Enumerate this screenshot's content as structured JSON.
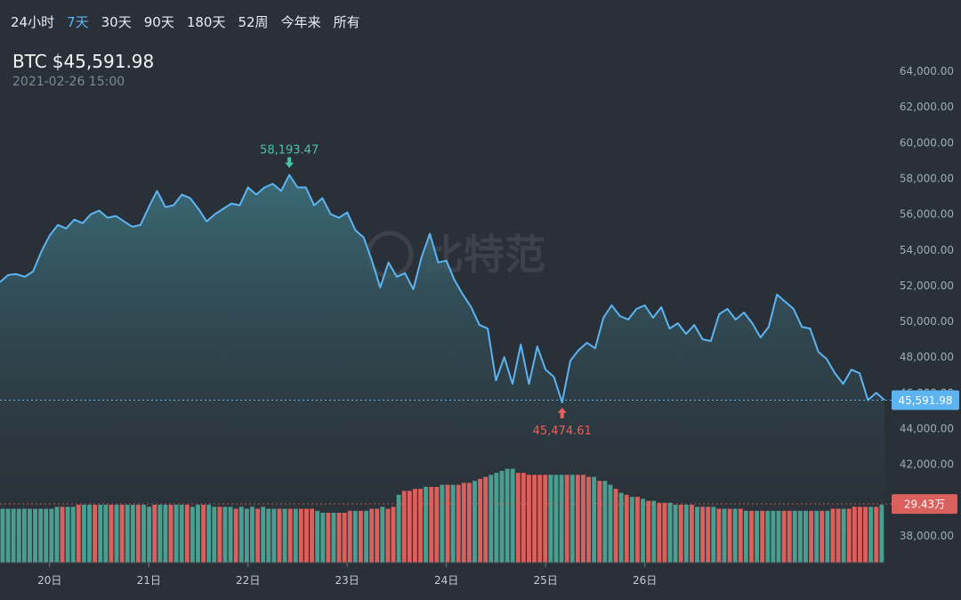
{
  "range_tabs": [
    {
      "label": "24小时",
      "active": false
    },
    {
      "label": "7天",
      "active": true
    },
    {
      "label": "30天",
      "active": false
    },
    {
      "label": "90天",
      "active": false
    },
    {
      "label": "180天",
      "active": false
    },
    {
      "label": "52周",
      "active": false
    },
    {
      "label": "今年来",
      "active": false
    },
    {
      "label": "所有",
      "active": false
    }
  ],
  "header": {
    "symbol": "BTC",
    "price": "$45,591.98",
    "timestamp": "2021-02-26 15:00"
  },
  "watermark": "比特范",
  "colors": {
    "line": "#5cb4f2",
    "up": "#4a9e90",
    "down": "#d9605c",
    "max_marker": "#4cc3a0",
    "min_marker": "#e8615c",
    "background": "#2a3037"
  },
  "chart_data": {
    "type": "line",
    "x_range": [
      "2021-02-19 12:00",
      "2021-02-26 15:00"
    ],
    "xticks": [
      {
        "label": "20日",
        "t": "2021-02-20 00:00"
      },
      {
        "label": "21日",
        "t": "2021-02-21 00:00"
      },
      {
        "label": "22日",
        "t": "2021-02-22 00:00"
      },
      {
        "label": "23日",
        "t": "2021-02-23 00:00"
      },
      {
        "label": "24日",
        "t": "2021-02-24 00:00"
      },
      {
        "label": "25日",
        "t": "2021-02-25 00:00"
      },
      {
        "label": "26日",
        "t": "2021-02-26 00:00"
      }
    ],
    "ylim": [
      36500,
      65000
    ],
    "yticks": [
      {
        "label": "38,000.00",
        "v": 38000
      },
      {
        "label": "40,000.00",
        "v": 40000
      },
      {
        "label": "42,000.00",
        "v": 42000
      },
      {
        "label": "44,000.00",
        "v": 44000
      },
      {
        "label": "46,000.00",
        "v": 46000
      },
      {
        "label": "48,000.00",
        "v": 48000
      },
      {
        "label": "50,000.00",
        "v": 50000
      },
      {
        "label": "52,000.00",
        "v": 52000
      },
      {
        "label": "54,000.00",
        "v": 54000
      },
      {
        "label": "56,000.00",
        "v": 56000
      },
      {
        "label": "58,000.00",
        "v": 58000
      },
      {
        "label": "60,000.00",
        "v": 60000
      },
      {
        "label": "62,000.00",
        "v": 62000
      },
      {
        "label": "64,000.00",
        "v": 64000
      }
    ],
    "price_series": {
      "points": [
        [
          "2021-02-19 12:00",
          52200
        ],
        [
          "2021-02-19 14:00",
          52600
        ],
        [
          "2021-02-19 16:00",
          52650
        ],
        [
          "2021-02-19 18:00",
          52500
        ],
        [
          "2021-02-19 20:00",
          52800
        ],
        [
          "2021-02-19 22:00",
          53900
        ],
        [
          "2021-02-20 00:00",
          54800
        ],
        [
          "2021-02-20 02:00",
          55400
        ],
        [
          "2021-02-20 04:00",
          55200
        ],
        [
          "2021-02-20 06:00",
          55700
        ],
        [
          "2021-02-20 08:00",
          55500
        ],
        [
          "2021-02-20 10:00",
          56000
        ],
        [
          "2021-02-20 12:00",
          56200
        ],
        [
          "2021-02-20 14:00",
          55800
        ],
        [
          "2021-02-20 16:00",
          55900
        ],
        [
          "2021-02-20 18:00",
          55600
        ],
        [
          "2021-02-20 20:00",
          55300
        ],
        [
          "2021-02-20 22:00",
          55400
        ],
        [
          "2021-02-21 00:00",
          56400
        ],
        [
          "2021-02-21 02:00",
          57300
        ],
        [
          "2021-02-21 04:00",
          56400
        ],
        [
          "2021-02-21 06:00",
          56500
        ],
        [
          "2021-02-21 08:00",
          57100
        ],
        [
          "2021-02-21 10:00",
          56900
        ],
        [
          "2021-02-21 12:00",
          56300
        ],
        [
          "2021-02-21 14:00",
          55600
        ],
        [
          "2021-02-21 16:00",
          56000
        ],
        [
          "2021-02-21 18:00",
          56300
        ],
        [
          "2021-02-21 20:00",
          56600
        ],
        [
          "2021-02-21 22:00",
          56500
        ],
        [
          "2021-02-22 00:00",
          57500
        ],
        [
          "2021-02-22 02:00",
          57100
        ],
        [
          "2021-02-22 04:00",
          57500
        ],
        [
          "2021-02-22 06:00",
          57700
        ],
        [
          "2021-02-22 08:00",
          57300
        ],
        [
          "2021-02-22 10:00",
          58193.47
        ],
        [
          "2021-02-22 12:00",
          57500
        ],
        [
          "2021-02-22 14:00",
          57500
        ],
        [
          "2021-02-22 16:00",
          56500
        ],
        [
          "2021-02-22 18:00",
          56900
        ],
        [
          "2021-02-22 20:00",
          56000
        ],
        [
          "2021-02-22 22:00",
          55800
        ],
        [
          "2021-02-23 00:00",
          56100
        ],
        [
          "2021-02-23 02:00",
          55100
        ],
        [
          "2021-02-23 04:00",
          54700
        ],
        [
          "2021-02-23 06:00",
          53400
        ],
        [
          "2021-02-23 08:00",
          51900
        ],
        [
          "2021-02-23 10:00",
          53300
        ],
        [
          "2021-02-23 12:00",
          52500
        ],
        [
          "2021-02-23 14:00",
          52700
        ],
        [
          "2021-02-23 16:00",
          51800
        ],
        [
          "2021-02-23 18:00",
          53600
        ],
        [
          "2021-02-23 20:00",
          54900
        ],
        [
          "2021-02-23 22:00",
          53300
        ],
        [
          "2021-02-24 00:00",
          53400
        ],
        [
          "2021-02-24 02:00",
          52300
        ],
        [
          "2021-02-24 04:00",
          51500
        ],
        [
          "2021-02-24 06:00",
          50800
        ],
        [
          "2021-02-24 08:00",
          49800
        ],
        [
          "2021-02-24 10:00",
          49600
        ],
        [
          "2021-02-24 12:00",
          46700
        ],
        [
          "2021-02-24 14:00",
          48000
        ],
        [
          "2021-02-24 16:00",
          46500
        ],
        [
          "2021-02-24 18:00",
          48700
        ],
        [
          "2021-02-24 20:00",
          46500
        ],
        [
          "2021-02-24 22:00",
          48600
        ],
        [
          "2021-02-25 00:00",
          47300
        ],
        [
          "2021-02-25 02:00",
          46900
        ],
        [
          "2021-02-25 04:00",
          45474.61
        ],
        [
          "2021-02-25 06:00",
          47800
        ],
        [
          "2021-02-25 08:00",
          48400
        ],
        [
          "2021-02-25 10:00",
          48800
        ],
        [
          "2021-02-25 12:00",
          48500
        ],
        [
          "2021-02-25 14:00",
          50200
        ],
        [
          "2021-02-25 16:00",
          50900
        ],
        [
          "2021-02-25 18:00",
          50300
        ],
        [
          "2021-02-25 20:00",
          50100
        ],
        [
          "2021-02-25 22:00",
          50700
        ],
        [
          "2021-02-26 00:00",
          50900
        ],
        [
          "2021-02-26 02:00",
          50200
        ],
        [
          "2021-02-26 04:00",
          50800
        ],
        [
          "2021-02-26 06:00",
          49600
        ],
        [
          "2021-02-26 08:00",
          49900
        ],
        [
          "2021-02-26 10:00",
          49300
        ],
        [
          "2021-02-26 12:00",
          49800
        ],
        [
          "2021-02-26 14:00",
          49000
        ],
        [
          "2021-02-26 16:00",
          48900
        ],
        [
          "2021-02-26 18:00",
          50400
        ],
        [
          "2021-02-26 20:00",
          50700
        ],
        [
          "2021-02-26 22:00",
          50100
        ],
        [
          "2021-02-27 00:00",
          50500
        ],
        [
          "2021-02-27 02:00",
          49900
        ],
        [
          "2021-02-27 04:00",
          49100
        ],
        [
          "2021-02-27 06:00",
          49700
        ],
        [
          "2021-02-27 08:00",
          51500
        ],
        [
          "2021-02-27 10:00",
          51100
        ],
        [
          "2021-02-27 12:00",
          50700
        ],
        [
          "2021-02-27 14:00",
          49700
        ],
        [
          "2021-02-27 16:00",
          49600
        ],
        [
          "2021-02-27 18:00",
          48300
        ],
        [
          "2021-02-27 20:00",
          47900
        ],
        [
          "2021-02-27 22:00",
          47100
        ],
        [
          "2021-02-28 00:00",
          46500
        ],
        [
          "2021-02-28 02:00",
          47300
        ],
        [
          "2021-02-28 04:00",
          47100
        ],
        [
          "2021-02-28 06:00",
          45591.98
        ],
        [
          "2021-02-28 08:00",
          46000
        ],
        [
          "2021-02-28 10:00",
          45600
        ]
      ]
    },
    "max_marker": {
      "label": "58,193.47",
      "t": "2021-02-22 10:00",
      "v": 58193.47
    },
    "min_marker": {
      "label": "45,474.61",
      "t": "2021-02-25 04:00",
      "v": 45474.61
    },
    "current_price": {
      "label": "45,591.98",
      "v": 45591.98
    },
    "volume_series": {
      "unit": "万",
      "max": 50,
      "current_label": "29.43万",
      "current_value": 29.43,
      "bars": [
        [
          27,
          1
        ],
        [
          27,
          1
        ],
        [
          27,
          1
        ],
        [
          27,
          1
        ],
        [
          27,
          1
        ],
        [
          27,
          1
        ],
        [
          27,
          1
        ],
        [
          27,
          1
        ],
        [
          27,
          1
        ],
        [
          27,
          1
        ],
        [
          28,
          1
        ],
        [
          28,
          0
        ],
        [
          28,
          1
        ],
        [
          28,
          1
        ],
        [
          29,
          0
        ],
        [
          29,
          1
        ],
        [
          29,
          1
        ],
        [
          29,
          0
        ],
        [
          29,
          1
        ],
        [
          29,
          1
        ],
        [
          29,
          0
        ],
        [
          29,
          1
        ],
        [
          29,
          0
        ],
        [
          29,
          1
        ],
        [
          29,
          1
        ],
        [
          29,
          0
        ],
        [
          29,
          1
        ],
        [
          28,
          1
        ],
        [
          29,
          0
        ],
        [
          29,
          1
        ],
        [
          29,
          1
        ],
        [
          29,
          0
        ],
        [
          29,
          1
        ],
        [
          29,
          1
        ],
        [
          29,
          0
        ],
        [
          28,
          1
        ],
        [
          29,
          1
        ],
        [
          29,
          0
        ],
        [
          29,
          1
        ],
        [
          28,
          1
        ],
        [
          28,
          0
        ],
        [
          28,
          1
        ],
        [
          28,
          1
        ],
        [
          27,
          0
        ],
        [
          28,
          1
        ],
        [
          27,
          1
        ],
        [
          28,
          1
        ],
        [
          27,
          0
        ],
        [
          28,
          1
        ],
        [
          27,
          1
        ],
        [
          27,
          1
        ],
        [
          27,
          0
        ],
        [
          27,
          1
        ],
        [
          27,
          0
        ],
        [
          27,
          1
        ],
        [
          27,
          0
        ],
        [
          27,
          0
        ],
        [
          27,
          0
        ],
        [
          26,
          1
        ],
        [
          25,
          1
        ],
        [
          25,
          0
        ],
        [
          25,
          1
        ],
        [
          25,
          0
        ],
        [
          25,
          0
        ],
        [
          26,
          0
        ],
        [
          26,
          1
        ],
        [
          26,
          0
        ],
        [
          26,
          1
        ],
        [
          27,
          0
        ],
        [
          27,
          0
        ],
        [
          28,
          1
        ],
        [
          27,
          0
        ],
        [
          28,
          0
        ],
        [
          34,
          1
        ],
        [
          36,
          0
        ],
        [
          36,
          0
        ],
        [
          37,
          0
        ],
        [
          37,
          0
        ],
        [
          38,
          1
        ],
        [
          38,
          0
        ],
        [
          38,
          0
        ],
        [
          39,
          1
        ],
        [
          39,
          0
        ],
        [
          39,
          1
        ],
        [
          39,
          0
        ],
        [
          40,
          0
        ],
        [
          40,
          0
        ],
        [
          41,
          1
        ],
        [
          42,
          0
        ],
        [
          43,
          0
        ],
        [
          44,
          1
        ],
        [
          45,
          1
        ],
        [
          46,
          1
        ],
        [
          47,
          1
        ],
        [
          47,
          1
        ],
        [
          45,
          0
        ],
        [
          45,
          0
        ],
        [
          44,
          0
        ],
        [
          44,
          0
        ],
        [
          44,
          0
        ],
        [
          44,
          0
        ],
        [
          44,
          1
        ],
        [
          44,
          1
        ],
        [
          44,
          1
        ],
        [
          44,
          0
        ],
        [
          44,
          1
        ],
        [
          44,
          0
        ],
        [
          44,
          0
        ],
        [
          43,
          0
        ],
        [
          43,
          1
        ],
        [
          41,
          0
        ],
        [
          41,
          1
        ],
        [
          39,
          1
        ],
        [
          37,
          0
        ],
        [
          35,
          1
        ],
        [
          34,
          0
        ],
        [
          33,
          1
        ],
        [
          33,
          0
        ],
        [
          32,
          1
        ],
        [
          31,
          0
        ],
        [
          31,
          1
        ],
        [
          30,
          0
        ],
        [
          30,
          0
        ],
        [
          30,
          1
        ],
        [
          29,
          1
        ],
        [
          29,
          0
        ],
        [
          29,
          1
        ],
        [
          29,
          0
        ],
        [
          28,
          1
        ],
        [
          28,
          0
        ],
        [
          28,
          0
        ],
        [
          28,
          1
        ],
        [
          27,
          0
        ],
        [
          27,
          1
        ],
        [
          27,
          0
        ],
        [
          27,
          1
        ],
        [
          27,
          0
        ],
        [
          26,
          1
        ],
        [
          26,
          0
        ],
        [
          26,
          1
        ],
        [
          26,
          0
        ],
        [
          26,
          1
        ],
        [
          26,
          1
        ],
        [
          26,
          1
        ],
        [
          26,
          0
        ],
        [
          26,
          0
        ],
        [
          26,
          1
        ],
        [
          26,
          1
        ],
        [
          26,
          1
        ],
        [
          26,
          0
        ],
        [
          26,
          1
        ],
        [
          26,
          0
        ],
        [
          26,
          1
        ],
        [
          27,
          0
        ],
        [
          27,
          0
        ],
        [
          27,
          1
        ],
        [
          27,
          0
        ],
        [
          28,
          0
        ],
        [
          28,
          0
        ],
        [
          28,
          0
        ],
        [
          28,
          1
        ],
        [
          28,
          0
        ],
        [
          29,
          1
        ]
      ]
    }
  }
}
